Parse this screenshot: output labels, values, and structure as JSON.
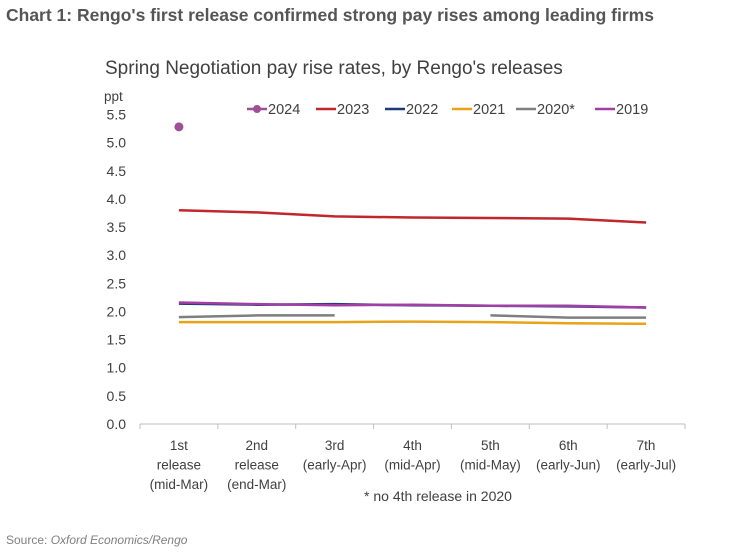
{
  "heading": "Chart 1: Rengo's first release confirmed strong pay rises among leading firms",
  "source": {
    "prefix": "Source: ",
    "name": "Oxford Economics/Rengo"
  },
  "chart_data": {
    "type": "line",
    "title": "Spring Negotiation pay rise rates, by Rengo's releases",
    "ylabel": "ppt",
    "ylim": [
      0,
      5.5
    ],
    "ytick_step": 0.5,
    "ytick_labels": [
      "0.0",
      "0.5",
      "1.0",
      "1.5",
      "2.0",
      "2.5",
      "3.0",
      "3.5",
      "4.0",
      "4.5",
      "5.0",
      "5.5"
    ],
    "grid": false,
    "legend_position": "top",
    "categories": [
      [
        "1st",
        "release",
        "(mid-Mar)"
      ],
      [
        "2nd",
        "release",
        "(end-Mar)"
      ],
      [
        "3rd",
        "(early-Apr)"
      ],
      [
        "4th",
        "(mid-Apr)"
      ],
      [
        "5th",
        "(mid-May)"
      ],
      [
        "6th",
        "(early-Jun)"
      ],
      [
        "7th",
        "(early-Jul)"
      ]
    ],
    "series": [
      {
        "name": "2024",
        "color": "#9e4f96",
        "marker": "dot",
        "values": [
          5.28,
          null,
          null,
          null,
          null,
          null,
          null
        ]
      },
      {
        "name": "2023",
        "color": "#c0272d",
        "values": [
          3.8,
          3.76,
          3.69,
          3.67,
          3.66,
          3.65,
          3.58
        ]
      },
      {
        "name": "2022",
        "color": "#1f3a7a",
        "values": [
          2.14,
          2.12,
          2.13,
          2.11,
          2.1,
          2.09,
          2.07
        ]
      },
      {
        "name": "2021",
        "color": "#e8a317",
        "values": [
          1.81,
          1.81,
          1.81,
          1.82,
          1.81,
          1.79,
          1.78
        ]
      },
      {
        "name": "2020*",
        "color": "#7f7f7f",
        "values": [
          1.9,
          1.93,
          1.93,
          null,
          1.93,
          1.89,
          1.89
        ]
      },
      {
        "name": "2019",
        "color": "#a23fa6",
        "values": [
          2.16,
          2.13,
          2.11,
          2.12,
          2.1,
          2.1,
          2.07
        ]
      }
    ],
    "note": "* no 4th release in 2020"
  }
}
